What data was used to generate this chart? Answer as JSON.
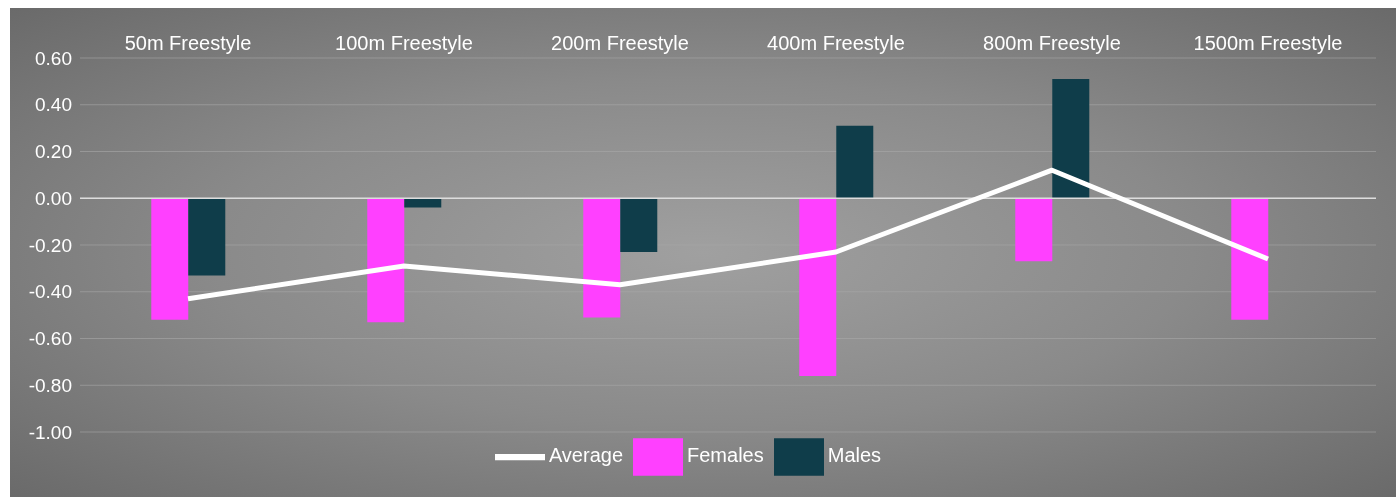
{
  "chart_data": {
    "type": "bar",
    "categories": [
      "50m Freestyle",
      "100m Freestyle",
      "200m Freestyle",
      "400m Freestyle",
      "800m Freestyle",
      "1500m Freestyle"
    ],
    "series": [
      {
        "name": "Females",
        "color": "#ff40ff",
        "values": [
          -0.52,
          -0.53,
          -0.51,
          -0.76,
          -0.27,
          -0.52
        ]
      },
      {
        "name": "Males",
        "color": "#0f3d4a",
        "values": [
          -0.33,
          -0.04,
          -0.23,
          0.31,
          0.51,
          0
        ]
      },
      {
        "name": "Average",
        "type": "line",
        "color": "#ffffff",
        "values": [
          -0.43,
          -0.29,
          -0.37,
          -0.23,
          0.12,
          -0.26
        ]
      }
    ],
    "ylim": [
      -1,
      0.6
    ],
    "yticks": [
      {
        "value": 0.6,
        "label": "0.60"
      },
      {
        "value": 0.4,
        "label": "0.40"
      },
      {
        "value": 0.2,
        "label": "0.20"
      },
      {
        "value": 0,
        "label": "0.00"
      },
      {
        "value": -0.2,
        "label": "-0.20"
      },
      {
        "value": -0.4,
        "label": "-0.40"
      },
      {
        "value": -0.6,
        "label": "-0.60"
      },
      {
        "value": -0.8,
        "label": "-0.80"
      },
      {
        "value": -1,
        "label": "-1.00"
      }
    ],
    "grid": "y",
    "legend": "bottom",
    "marker": "none"
  }
}
